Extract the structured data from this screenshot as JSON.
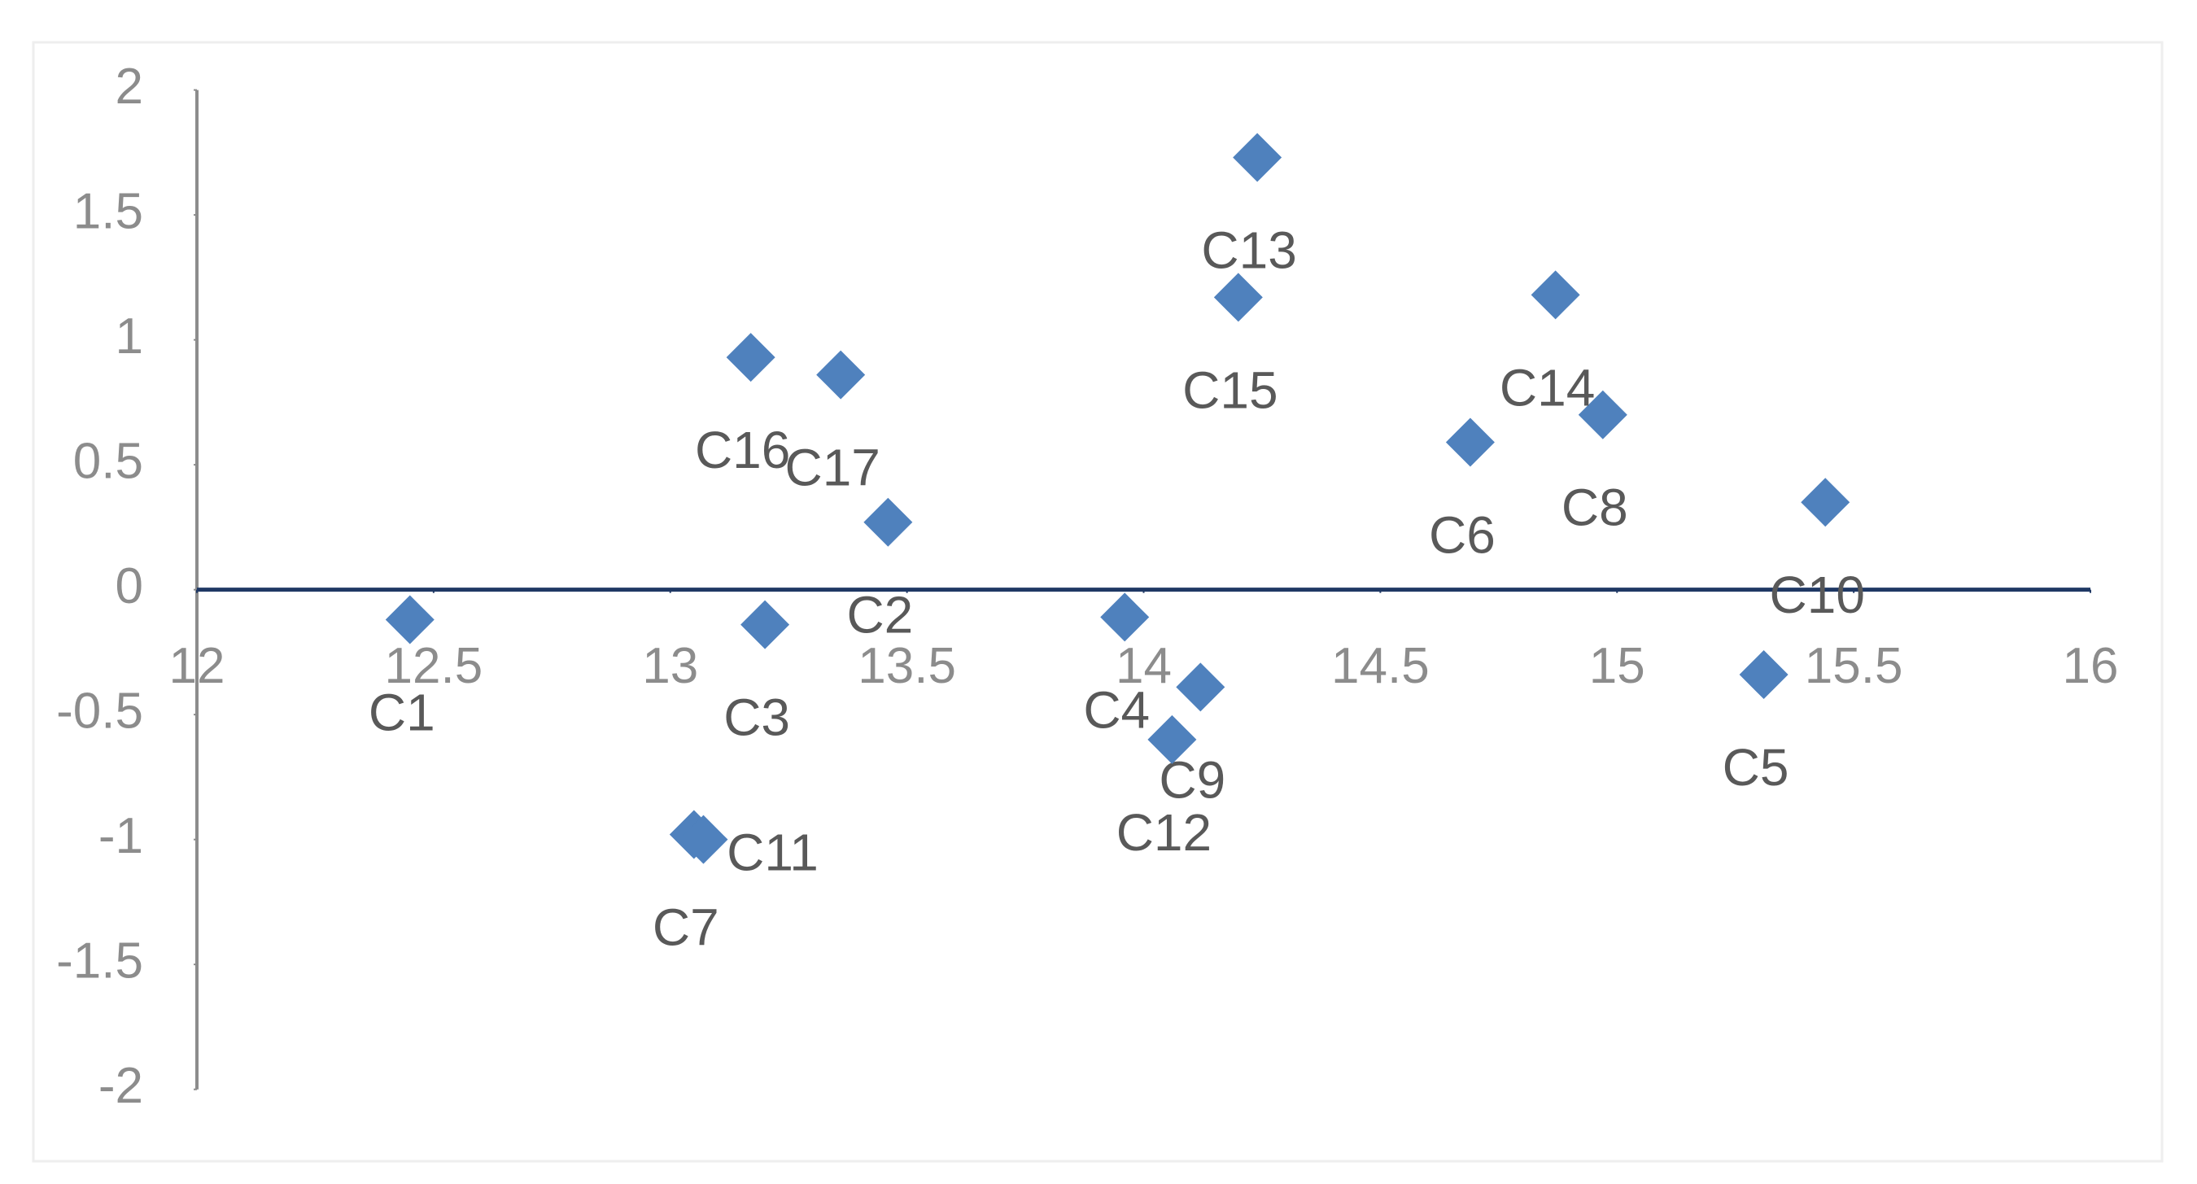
{
  "chart_data": {
    "type": "scatter",
    "series": [
      {
        "color": "#4f81bd",
        "labels": [
          "C1",
          "C2",
          "C3",
          "C4",
          "C5",
          "C6",
          "C7",
          "C8",
          "C9",
          "C10",
          "C11",
          "C12",
          "C13",
          "C14",
          "C15",
          "C16",
          "C17"
        ],
        "x": [
          12.45,
          13.46,
          13.2,
          13.96,
          15.31,
          14.69,
          13.05,
          14.97,
          14.12,
          15.44,
          13.07,
          14.06,
          14.24,
          14.87,
          14.2,
          13.17,
          13.36
        ],
        "values": [
          -0.12,
          0.27,
          -0.14,
          -0.11,
          -0.34,
          0.59,
          -0.98,
          0.7,
          -0.39,
          0.35,
          -1.0,
          -0.6,
          1.73,
          1.18,
          1.17,
          0.93,
          0.86
        ]
      }
    ],
    "xlim": [
      12,
      16
    ],
    "xticks": [
      12,
      12.5,
      13,
      13.5,
      14,
      14.5,
      15,
      15.5,
      16
    ],
    "ylim": [
      -2,
      2
    ],
    "yticks": [
      -2,
      -1.5,
      -1,
      -0.5,
      0,
      0.5,
      1,
      1.5,
      2
    ]
  }
}
